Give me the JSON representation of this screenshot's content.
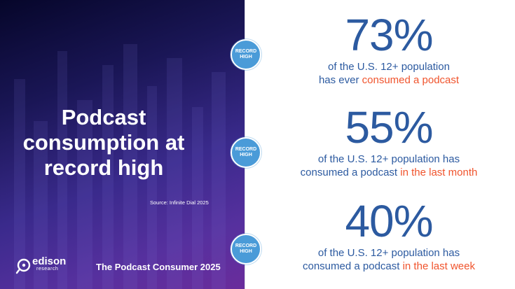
{
  "headline": {
    "line1": "Podcast",
    "line2": "consumption at",
    "line3": "record high"
  },
  "source": "Source: Infinite Dial 2025",
  "footer_title": "The Podcast Consumer 2025",
  "logo": {
    "name": "edison",
    "sub": "research"
  },
  "badge_label": "RECORD HIGH",
  "stats": [
    {
      "value": "73%",
      "line1": "of the U.S. 12+ population",
      "line2_pre": "has ever ",
      "line2_highlight": "consumed a podcast"
    },
    {
      "value": "55%",
      "line1": "of the U.S. 12+ population has",
      "line2_pre": "consumed a podcast ",
      "line2_highlight": "in the last month"
    },
    {
      "value": "40%",
      "line1": "of the U.S. 12+ population has",
      "line2_pre": "consumed a podcast ",
      "line2_highlight": "in the last week"
    }
  ],
  "colors": {
    "stat_blue": "#2c5aa0",
    "highlight_orange": "#f0542d",
    "badge_blue": "#4a9bd8",
    "panel_dark": "#1a1656",
    "panel_purple": "#6a2c9c"
  }
}
